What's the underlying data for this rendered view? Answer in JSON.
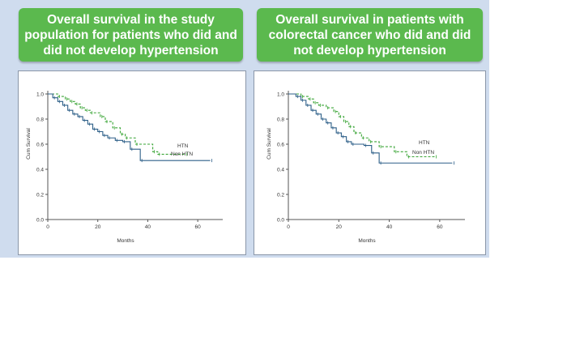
{
  "banners": {
    "left": "Overall survival in the study population for patients who did and did not develop hypertension",
    "right": "Overall survival in patients with colorectal cancer who did and did not develop hypertension"
  },
  "colors": {
    "panel": "#cfdcee",
    "banner": "#5bb94e",
    "htn": "#3aa536",
    "non_htn": "#2d5f88"
  },
  "chart_data": [
    {
      "type": "line",
      "title": "Overall survival in the study population for patients who did and did not develop hypertension",
      "xlabel": "Months",
      "ylabel": "Cum Survival",
      "xlim": [
        0,
        70
      ],
      "ylim": [
        0,
        1.0
      ],
      "xticks": [
        "0",
        "20",
        "40",
        "60"
      ],
      "yticks": [
        "0.0",
        "0.2",
        "0.4",
        "0.6",
        "0.8",
        "1.0"
      ],
      "step": true,
      "series": [
        {
          "name": "HTN",
          "style": "dashed",
          "x": [
            0,
            4,
            7,
            9,
            11,
            13,
            15,
            17,
            21,
            23,
            26,
            29,
            31,
            35,
            42,
            44,
            55
          ],
          "y": [
            1.0,
            0.98,
            0.96,
            0.94,
            0.92,
            0.89,
            0.87,
            0.85,
            0.82,
            0.78,
            0.73,
            0.68,
            0.65,
            0.6,
            0.54,
            0.52,
            0.52
          ]
        },
        {
          "name": "Non HTN",
          "style": "solid",
          "x": [
            0,
            2,
            4,
            6,
            8,
            10,
            12,
            14,
            16,
            18,
            20,
            22,
            24,
            27,
            30,
            33,
            37,
            65
          ],
          "y": [
            1.0,
            0.97,
            0.94,
            0.91,
            0.87,
            0.84,
            0.82,
            0.79,
            0.76,
            0.72,
            0.7,
            0.67,
            0.65,
            0.63,
            0.62,
            0.56,
            0.47,
            0.47
          ]
        }
      ]
    },
    {
      "type": "line",
      "title": "Overall survival in patients with colorectal cancer who did and did not develop hypertension",
      "xlabel": "Months",
      "ylabel": "Cum Survival",
      "xlim": [
        0,
        70
      ],
      "ylim": [
        0,
        1.0
      ],
      "xticks": [
        "0",
        "20",
        "40",
        "60"
      ],
      "yticks": [
        "0.0",
        "0.2",
        "0.4",
        "0.6",
        "0.8",
        "1.0"
      ],
      "step": true,
      "series": [
        {
          "name": "HTN",
          "style": "dashed",
          "x": [
            0,
            5,
            8,
            10,
            12,
            15,
            18,
            20,
            22,
            24,
            26,
            29,
            32,
            36,
            42,
            47,
            58
          ],
          "y": [
            1.0,
            0.98,
            0.96,
            0.93,
            0.91,
            0.89,
            0.86,
            0.82,
            0.78,
            0.74,
            0.69,
            0.65,
            0.62,
            0.58,
            0.54,
            0.5,
            0.5
          ]
        },
        {
          "name": "Non HTN",
          "style": "solid",
          "x": [
            0,
            3,
            5,
            7,
            9,
            11,
            13,
            15,
            17,
            19,
            21,
            23,
            25,
            30,
            33,
            36,
            65
          ],
          "y": [
            1.0,
            0.98,
            0.95,
            0.91,
            0.87,
            0.84,
            0.8,
            0.77,
            0.73,
            0.69,
            0.66,
            0.62,
            0.6,
            0.59,
            0.53,
            0.45,
            0.45
          ]
        }
      ]
    }
  ]
}
